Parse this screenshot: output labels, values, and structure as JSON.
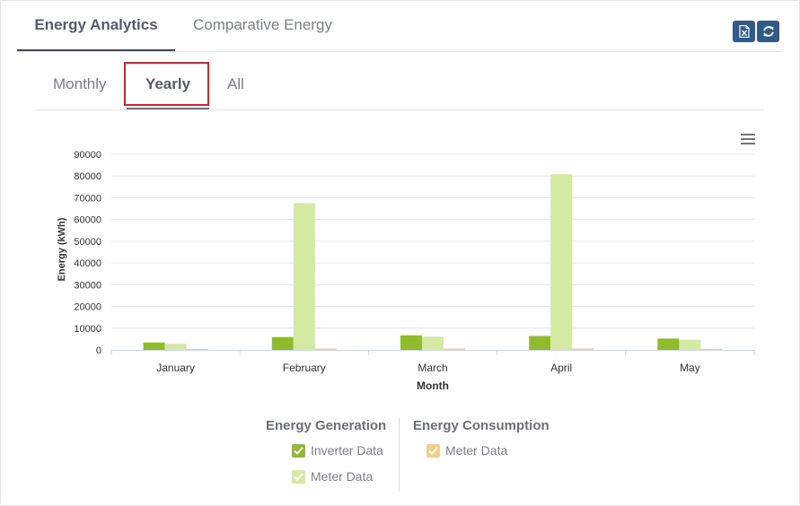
{
  "tabs": {
    "main": [
      "Energy Analytics",
      "Comparative Energy"
    ],
    "sub": [
      "Monthly",
      "Yearly",
      "All"
    ]
  },
  "toolbar": {
    "export_icon": "excel-export-icon",
    "refresh_icon": "refresh-icon"
  },
  "colors": {
    "accent": "#2f5a8a",
    "inverter": "#8fbb2c",
    "meter_generation": "#d4e9a2",
    "meter_consumption": "#f7cd80",
    "highlight": "#e11d2a"
  },
  "legend": {
    "generation_title": "Energy Generation",
    "generation_items": [
      "Inverter Data",
      "Meter Data"
    ],
    "consumption_title": "Energy Consumption",
    "consumption_items": [
      "Meter Data"
    ]
  },
  "chart_data": {
    "type": "bar",
    "categories": [
      "January",
      "February",
      "March",
      "April",
      "May"
    ],
    "series": [
      {
        "name": "Inverter Data",
        "group": "Energy Generation",
        "values": [
          3400,
          5900,
          6700,
          6400,
          5200
        ]
      },
      {
        "name": "Meter Data",
        "group": "Energy Generation",
        "values": [
          2800,
          67500,
          6100,
          80800,
          4700
        ]
      },
      {
        "name": "Meter Data",
        "group": "Energy Consumption",
        "values": [
          400,
          600,
          600,
          600,
          500
        ]
      }
    ],
    "xlabel": "Month",
    "ylabel": "Energy (kWh)",
    "ylim": [
      0,
      90000
    ],
    "yticks": [
      "0",
      "10000",
      "20000",
      "30000",
      "40000",
      "50000",
      "60000",
      "70000",
      "80000",
      "90000"
    ],
    "grid": true,
    "legend_position": "bottom"
  }
}
